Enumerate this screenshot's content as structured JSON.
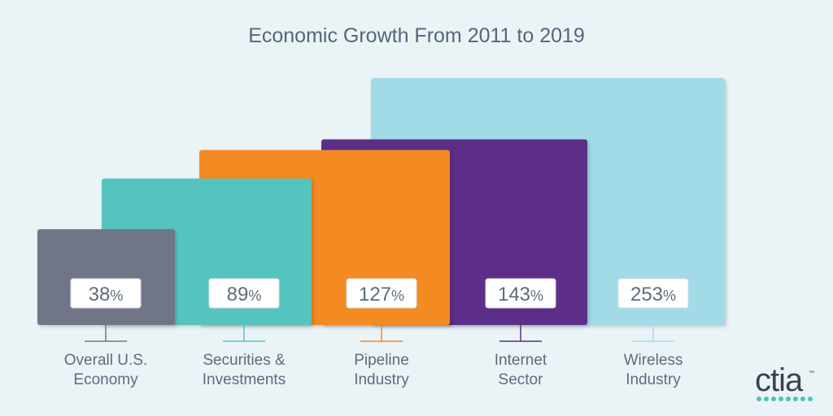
{
  "chart_data": {
    "type": "bar",
    "title": "Economic Growth From 2011 to 2019",
    "categories": [
      "Overall U.S. Economy",
      "Securities & Investments",
      "Pipeline Industry",
      "Internet Sector",
      "Wireless Industry"
    ],
    "category_lines": [
      [
        "Overall U.S.",
        "Economy"
      ],
      [
        "Securities &",
        "Investments"
      ],
      [
        "Pipeline",
        "Industry"
      ],
      [
        "Internet",
        "Sector"
      ],
      [
        "Wireless",
        "Industry"
      ]
    ],
    "values": [
      38,
      89,
      127,
      143,
      253
    ],
    "value_labels": [
      "38%",
      "89%",
      "127%",
      "143%",
      "253%"
    ],
    "colors": [
      "#6f7687",
      "#56c4be",
      "#f38a22",
      "#5b2d88",
      "#a1dbe8"
    ],
    "unit": "%"
  },
  "logo": {
    "text": "ctia",
    "tm": "™"
  }
}
